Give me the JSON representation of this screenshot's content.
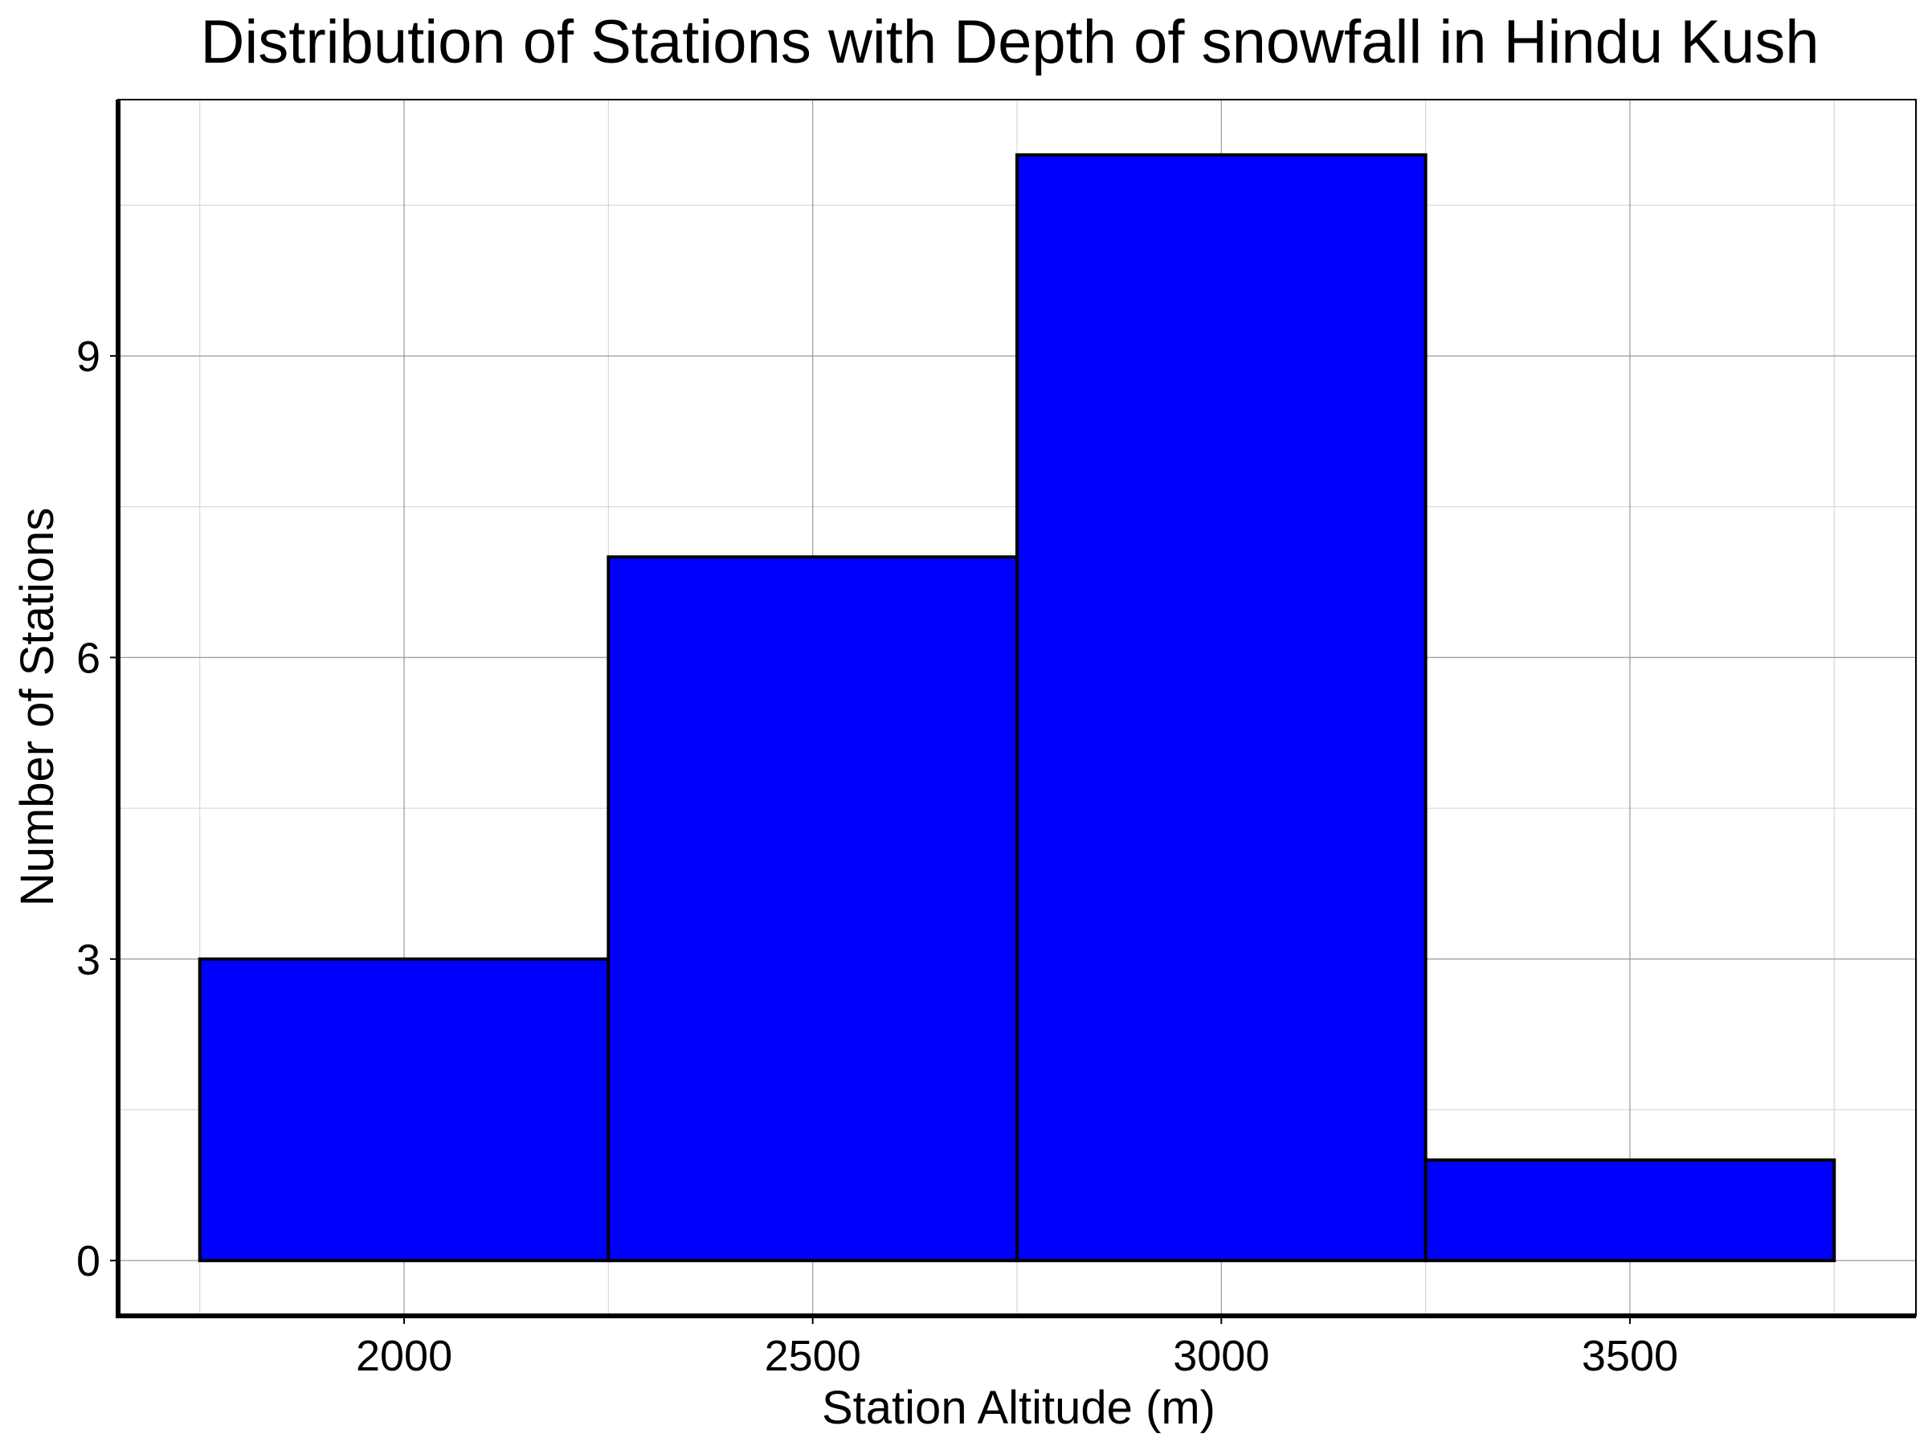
{
  "chart_data": {
    "type": "bar",
    "title": "Distribution of Stations with Depth of snowfall in Hindu Kush",
    "xlabel": "Station Altitude (m)",
    "ylabel": "Number of Stations",
    "bins": [
      {
        "x_start": 1750,
        "x_end": 2250,
        "value": 3
      },
      {
        "x_start": 2250,
        "x_end": 2750,
        "value": 7
      },
      {
        "x_start": 2750,
        "x_end": 3250,
        "value": 11
      },
      {
        "x_start": 3250,
        "x_end": 3750,
        "value": 1
      }
    ],
    "categories": [
      "1750-2250",
      "2250-2750",
      "2750-3250",
      "3250-3750"
    ],
    "values": [
      3,
      7,
      11,
      1
    ],
    "x_ticks": [
      "2000",
      "2500",
      "3000",
      "3500"
    ],
    "y_ticks": [
      "0",
      "3",
      "6",
      "9"
    ],
    "xlim": [
      1650,
      3850
    ],
    "ylim": [
      -0.55,
      11.55
    ],
    "grid": true,
    "colors": {
      "bar_fill": "#0000ff",
      "bar_edge": "#000000",
      "background": "#ffffff"
    }
  }
}
